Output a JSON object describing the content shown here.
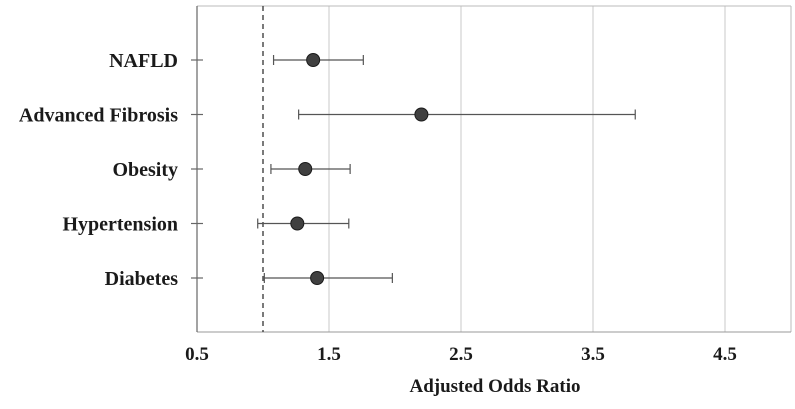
{
  "chart_data": {
    "type": "forest",
    "title": "",
    "xlabel": "Adjusted Odds Ratio",
    "ylabel": "",
    "xlim": [
      0.5,
      5.0
    ],
    "xticks": [
      0.5,
      1.5,
      2.5,
      3.5,
      4.5
    ],
    "xtick_labels": [
      "0.5",
      "1.5",
      "2.5",
      "3.5",
      "4.5"
    ],
    "reference_line": 1.0,
    "grid": "vertical",
    "categories": [
      "NAFLD",
      "Advanced Fibrosis",
      "Obesity",
      "Hypertension",
      "Diabetes"
    ],
    "series": [
      {
        "estimates": [
          1.38,
          2.2,
          1.32,
          1.26,
          1.41
        ],
        "ci_lower": [
          1.08,
          1.27,
          1.06,
          0.96,
          1.01
        ],
        "ci_upper": [
          1.76,
          3.82,
          1.66,
          1.65,
          1.98
        ]
      }
    ],
    "colors": {
      "marker": "#404040",
      "line": "#555555",
      "grid": "#c8c8c8",
      "reference": "#333333"
    }
  }
}
